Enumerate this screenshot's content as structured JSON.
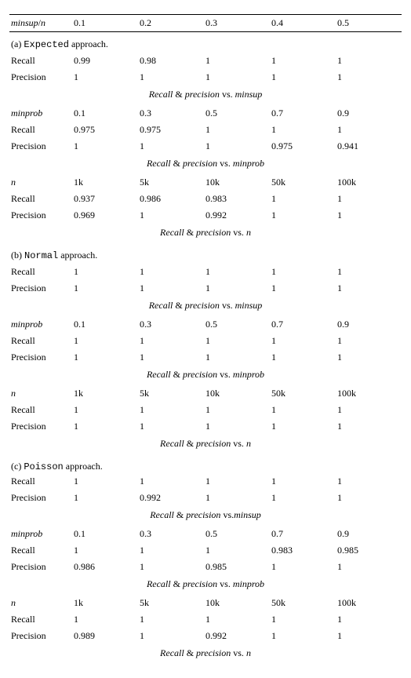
{
  "header": {
    "label_html": "<span class='italic'>minsup</span>/<span class='italic'>n</span>",
    "cols": [
      "0.1",
      "0.2",
      "0.3",
      "0.4",
      "0.5"
    ]
  },
  "sections": [
    {
      "caption_prefix": "(a) ",
      "caption_mono": "Expected",
      "caption_suffix": " approach.",
      "blocks": [
        {
          "header": null,
          "rows": [
            {
              "label": "Recall",
              "vals": [
                "0.99",
                "0.98",
                "1",
                "1",
                "1"
              ]
            },
            {
              "label": "Precision",
              "vals": [
                "1",
                "1",
                "1",
                "1",
                "1"
              ]
            }
          ],
          "sub_html": "<span>Recall</span> <span class='amp'>&amp;</span> <span>precision</span> <span class='amp'>vs.</span> <span>minsup</span>"
        },
        {
          "header": {
            "label_html": "<span class='italic'>minprob</span>",
            "cols": [
              "0.1",
              "0.3",
              "0.5",
              "0.7",
              "0.9"
            ]
          },
          "rows": [
            {
              "label": "Recall",
              "vals": [
                "0.975",
                "0.975",
                "1",
                "1",
                "1"
              ]
            },
            {
              "label": "Precision",
              "vals": [
                "1",
                "1",
                "1",
                "0.975",
                "0.941"
              ]
            }
          ],
          "sub_html": "<span>Recall</span> <span class='amp'>&amp;</span> <span>precision</span> <span class='amp'>vs.</span> <span>minprob</span>"
        },
        {
          "header": {
            "label_html": "<span class='italic'>n</span>",
            "cols": [
              "1k",
              "5k",
              "10k",
              "50k",
              "100k"
            ]
          },
          "rows": [
            {
              "label": "Recall",
              "vals": [
                "0.937",
                "0.986",
                "0.983",
                "1",
                "1"
              ]
            },
            {
              "label": "Precision",
              "vals": [
                "0.969",
                "1",
                "0.992",
                "1",
                "1"
              ]
            }
          ],
          "sub_html": "<span>Recall</span> <span class='amp'>&amp;</span> <span>precision</span> <span class='amp'>vs.</span> <span>n</span>"
        }
      ]
    },
    {
      "caption_prefix": "(b) ",
      "caption_mono": "Normal",
      "caption_suffix": " approach.",
      "blocks": [
        {
          "header": null,
          "rows": [
            {
              "label": "Recall",
              "vals": [
                "1",
                "1",
                "1",
                "1",
                "1"
              ]
            },
            {
              "label": "Precision",
              "vals": [
                "1",
                "1",
                "1",
                "1",
                "1"
              ]
            }
          ],
          "sub_html": "<span>Recall</span> <span class='amp'>&amp;</span> <span>precision</span> <span class='amp'>vs.</span> <span>minsup</span>"
        },
        {
          "header": {
            "label_html": "<span class='italic'>minprob</span>",
            "cols": [
              "0.1",
              "0.3",
              "0.5",
              "0.7",
              "0.9"
            ]
          },
          "rows": [
            {
              "label": "Recall",
              "vals": [
                "1",
                "1",
                "1",
                "1",
                "1"
              ]
            },
            {
              "label": "Precision",
              "vals": [
                "1",
                "1",
                "1",
                "1",
                "1"
              ]
            }
          ],
          "sub_html": "<span>Recall</span> <span class='amp'>&amp;</span> <span>precision</span> <span class='amp'>vs.</span> <span>minprob</span>"
        },
        {
          "header": {
            "label_html": "<span class='italic'>n</span>",
            "cols": [
              "1k",
              "5k",
              "10k",
              "50k",
              "100k"
            ]
          },
          "rows": [
            {
              "label": "Recall",
              "vals": [
                "1",
                "1",
                "1",
                "1",
                "1"
              ]
            },
            {
              "label": "Precision",
              "vals": [
                "1",
                "1",
                "1",
                "1",
                "1"
              ]
            }
          ],
          "sub_html": "<span>Recall</span> <span class='amp'>&amp;</span> <span>precision</span> <span class='amp'>vs.</span> <span>n</span>"
        }
      ]
    },
    {
      "caption_prefix": "(c) ",
      "caption_mono": "Poisson",
      "caption_suffix": " approach.",
      "tight": true,
      "blocks": [
        {
          "header": null,
          "rows": [
            {
              "label": "Recall",
              "vals": [
                "1",
                "1",
                "1",
                "1",
                "1"
              ]
            },
            {
              "label": "Precision",
              "vals": [
                "1",
                "0.992",
                "1",
                "1",
                "1"
              ]
            }
          ],
          "sub_html": "<span>Recall</span> <span class='amp'>&amp;</span> <span>precision</span> <span class='amp'>vs.</span><span>minsup</span>"
        },
        {
          "header": {
            "label_html": "<span class='italic'>minprob</span>",
            "cols": [
              "0.1",
              "0.3",
              "0.5",
              "0.7",
              "0.9"
            ]
          },
          "rows": [
            {
              "label": "Recall",
              "vals": [
                "1",
                "1",
                "1",
                "0.983",
                "0.985"
              ]
            },
            {
              "label": "Precision",
              "vals": [
                "0.986",
                "1",
                "0.985",
                "1",
                "1"
              ]
            }
          ],
          "sub_html": "<span>Recall</span> <span class='amp'>&amp;</span> <span>precision</span> <span class='amp'>vs.</span> <span>minprob</span>"
        },
        {
          "header": {
            "label_html": "<span class='italic'>n</span>",
            "cols": [
              "1k",
              "5k",
              "10k",
              "50k",
              "100k"
            ]
          },
          "rows": [
            {
              "label": "Recall",
              "vals": [
                "1",
                "1",
                "1",
                "1",
                "1"
              ]
            },
            {
              "label": "Precision",
              "vals": [
                "0.989",
                "1",
                "0.992",
                "1",
                "1"
              ]
            }
          ],
          "sub_html": "<span>Recall</span> <span class='amp'>&amp;</span> <span>precision</span> <span class='amp'>vs.</span> <span>n</span>"
        }
      ]
    }
  ]
}
